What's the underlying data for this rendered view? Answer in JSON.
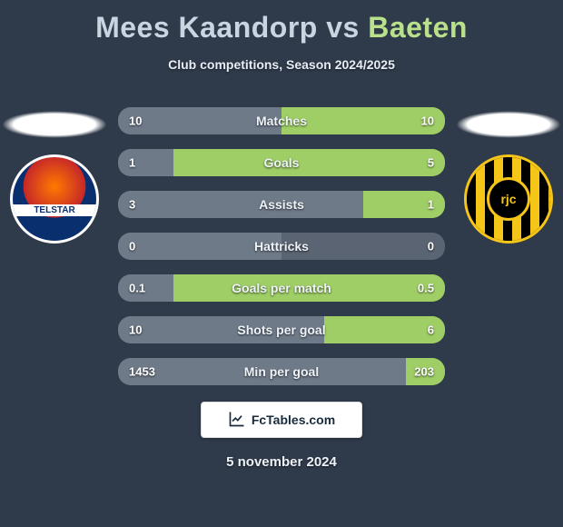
{
  "background_color": "#2f3a4a",
  "title": {
    "player1": "Mees Kaandorp",
    "vs": "vs",
    "player2": "Baeten",
    "player1_color": "#c9d6e2",
    "player2_color": "#b9e08a"
  },
  "subtitle": "Club competitions, Season 2024/2025",
  "teams": {
    "left": {
      "name": "telstar-crest",
      "label": "TELSTAR"
    },
    "right": {
      "name": "roda-crest",
      "label": "rjc"
    }
  },
  "stats": {
    "row_bg": "#5a6472",
    "left_bar_color": "#6f7a89",
    "right_bar_color": "#9fce66",
    "rows": [
      {
        "label": "Matches",
        "left": "10",
        "right": "10",
        "left_pct": 50,
        "right_pct": 50
      },
      {
        "label": "Goals",
        "left": "1",
        "right": "5",
        "left_pct": 17,
        "right_pct": 83
      },
      {
        "label": "Assists",
        "left": "3",
        "right": "1",
        "left_pct": 75,
        "right_pct": 25
      },
      {
        "label": "Hattricks",
        "left": "0",
        "right": "0",
        "left_pct": 50,
        "right_pct": 0
      },
      {
        "label": "Goals per match",
        "left": "0.1",
        "right": "0.5",
        "left_pct": 17,
        "right_pct": 83
      },
      {
        "label": "Shots per goal",
        "left": "10",
        "right": "6",
        "left_pct": 63,
        "right_pct": 37
      },
      {
        "label": "Min per goal",
        "left": "1453",
        "right": "203",
        "left_pct": 88,
        "right_pct": 12
      }
    ]
  },
  "badge": {
    "text": "FcTables.com"
  },
  "date": "5 november 2024"
}
